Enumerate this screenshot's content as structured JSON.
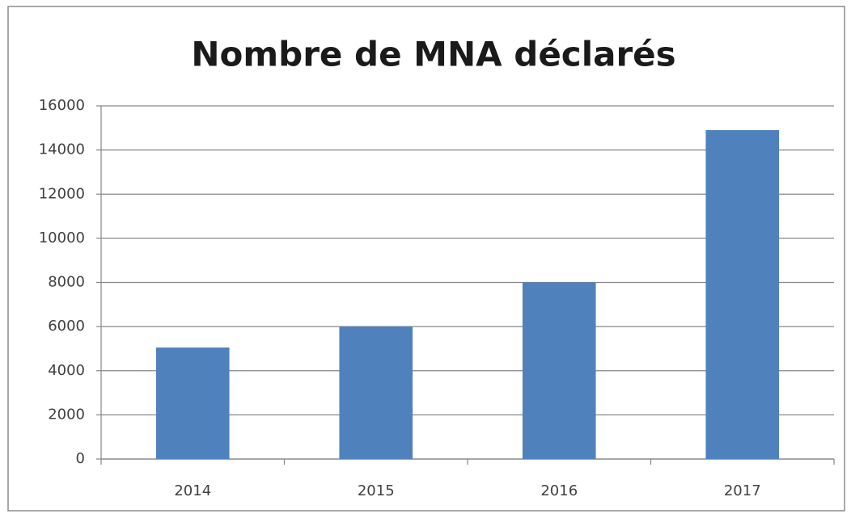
{
  "chart_data": {
    "type": "bar",
    "title": "Nombre de MNA déclarés",
    "categories": [
      "2014",
      "2015",
      "2016",
      "2017"
    ],
    "values": [
      5050,
      6000,
      8000,
      14900
    ],
    "color": "#4f81bd",
    "ylim": [
      0,
      16000
    ],
    "yticks": [
      0,
      2000,
      4000,
      6000,
      8000,
      10000,
      12000,
      14000,
      16000
    ],
    "grid": true
  }
}
